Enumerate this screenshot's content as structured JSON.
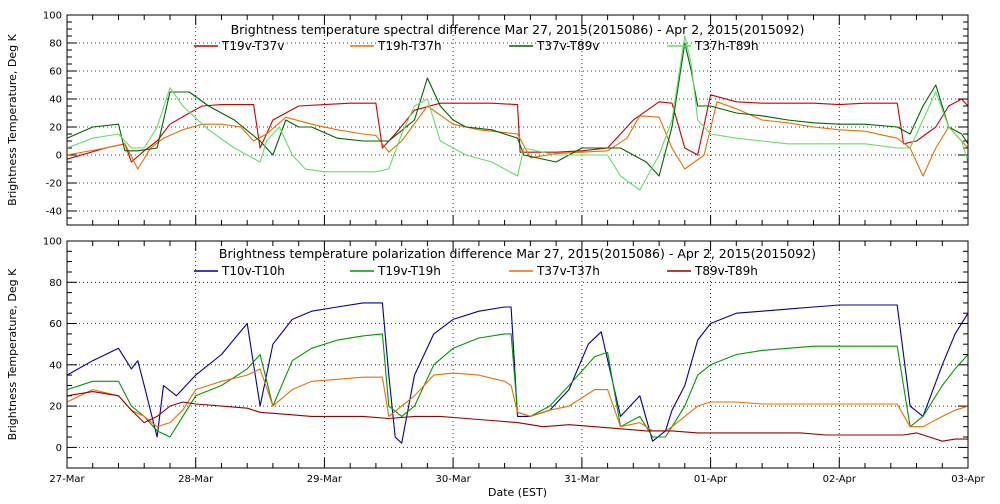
{
  "chart_data": [
    {
      "type": "line",
      "title": "Brightness temperature spectral difference    Mar 27, 2015(2015086) - Apr  2, 2015(2015092)",
      "ylabel": "Brightness Temperature, Deg K",
      "xlabel": "",
      "ylim": [
        -50,
        100
      ],
      "yticks": [
        -40,
        -20,
        0,
        20,
        40,
        60,
        80,
        100
      ],
      "xlim": [
        0,
        7
      ],
      "grid": true,
      "legend": "top",
      "series": [
        {
          "name": "T19v-T37v",
          "color": "#cc0000",
          "x": [
            0,
            0.3,
            0.45,
            0.5,
            0.6,
            0.7,
            0.8,
            0.95,
            1.05,
            1.2,
            1.3,
            1.45,
            1.5,
            1.6,
            1.8,
            2.0,
            2.2,
            2.4,
            2.45,
            2.55,
            2.7,
            2.9,
            3.1,
            3.3,
            3.5,
            3.52,
            3.6,
            3.8,
            4.0,
            4.2,
            4.4,
            4.6,
            4.7,
            4.8,
            4.9,
            5.0,
            5.2,
            5.4,
            5.6,
            5.8,
            6.0,
            6.2,
            6.45,
            6.5,
            6.6,
            6.75,
            6.85,
            6.95,
            7.0
          ],
          "values": [
            -3,
            5,
            8,
            -5,
            3,
            10,
            22,
            30,
            35,
            36,
            36,
            36,
            5,
            25,
            35,
            36,
            37,
            37,
            5,
            15,
            32,
            37,
            37,
            37,
            36,
            2,
            2,
            2,
            3,
            5,
            25,
            38,
            37,
            5,
            0,
            43,
            38,
            37,
            37,
            37,
            36,
            37,
            37,
            8,
            10,
            20,
            35,
            40,
            35
          ]
        },
        {
          "name": "T19h-T37h",
          "color": "#e87000",
          "x": [
            0,
            0.3,
            0.45,
            0.55,
            0.65,
            0.75,
            0.9,
            1.05,
            1.2,
            1.35,
            1.45,
            1.55,
            1.7,
            1.9,
            2.1,
            2.3,
            2.4,
            2.5,
            2.6,
            2.8,
            3.0,
            3.2,
            3.4,
            3.5,
            3.6,
            3.8,
            4.0,
            4.2,
            4.35,
            4.45,
            4.6,
            4.7,
            4.8,
            4.95,
            5.05,
            5.2,
            5.4,
            5.6,
            5.8,
            6.0,
            6.2,
            6.45,
            6.55,
            6.65,
            6.75,
            6.85,
            6.95,
            7.0
          ],
          "values": [
            0,
            5,
            8,
            -10,
            5,
            12,
            18,
            22,
            22,
            20,
            10,
            15,
            27,
            22,
            18,
            15,
            14,
            2,
            10,
            35,
            22,
            18,
            16,
            15,
            -2,
            1,
            2,
            3,
            12,
            28,
            27,
            5,
            -10,
            0,
            38,
            33,
            25,
            23,
            20,
            18,
            17,
            12,
            5,
            -15,
            5,
            20,
            10,
            5
          ]
        },
        {
          "name": "T37v-T89v",
          "color": "#006400",
          "x": [
            0,
            0.2,
            0.4,
            0.45,
            0.55,
            0.7,
            0.8,
            0.95,
            1.1,
            1.3,
            1.5,
            1.6,
            1.7,
            1.8,
            1.9,
            2.1,
            2.3,
            2.5,
            2.7,
            2.8,
            2.9,
            3.0,
            3.1,
            3.3,
            3.5,
            3.55,
            3.8,
            4.0,
            4.2,
            4.3,
            4.5,
            4.6,
            4.7,
            4.75,
            4.8,
            4.85,
            4.9,
            5.0,
            5.2,
            5.4,
            5.6,
            5.8,
            6.0,
            6.2,
            6.45,
            6.55,
            6.65,
            6.75,
            6.85,
            6.95,
            7.0
          ],
          "values": [
            12,
            20,
            22,
            3,
            3,
            5,
            45,
            45,
            35,
            25,
            10,
            0,
            25,
            20,
            20,
            12,
            10,
            10,
            25,
            55,
            35,
            25,
            20,
            18,
            12,
            0,
            -5,
            5,
            5,
            5,
            -5,
            -15,
            20,
            50,
            80,
            60,
            35,
            35,
            30,
            28,
            25,
            23,
            22,
            22,
            20,
            15,
            35,
            50,
            20,
            15,
            8
          ]
        },
        {
          "name": "T37h-T89h",
          "color": "#66dd66",
          "x": [
            0,
            0.2,
            0.4,
            0.5,
            0.6,
            0.7,
            0.8,
            0.9,
            1.1,
            1.3,
            1.5,
            1.55,
            1.65,
            1.75,
            1.85,
            2.0,
            2.2,
            2.4,
            2.5,
            2.6,
            2.7,
            2.8,
            2.9,
            3.1,
            3.3,
            3.5,
            3.55,
            3.8,
            4.0,
            4.2,
            4.3,
            4.45,
            4.6,
            4.7,
            4.75,
            4.8,
            4.85,
            4.9,
            5.0,
            5.2,
            5.4,
            5.6,
            5.8,
            6.0,
            6.2,
            6.45,
            6.55,
            6.65,
            6.75,
            6.85,
            6.95,
            7.0
          ],
          "values": [
            5,
            12,
            15,
            5,
            5,
            20,
            48,
            35,
            18,
            5,
            -5,
            10,
            20,
            0,
            -10,
            -12,
            -12,
            -12,
            -10,
            15,
            35,
            40,
            10,
            0,
            -5,
            -15,
            5,
            0,
            0,
            0,
            -15,
            -25,
            0,
            25,
            55,
            85,
            65,
            25,
            15,
            12,
            10,
            8,
            8,
            8,
            8,
            5,
            5,
            25,
            45,
            20,
            10,
            -5
          ]
        }
      ]
    },
    {
      "type": "line",
      "title": "Brightness temperature polarization difference    Mar 27, 2015(2015086) - Apr  2, 2015(2015092)",
      "ylabel": "Brightness Temperature, Deg K",
      "xlabel": "Date (EST)",
      "ylim": [
        -10,
        100
      ],
      "yticks": [
        0,
        20,
        40,
        60,
        80,
        100
      ],
      "xlim": [
        0,
        7
      ],
      "xticks": [
        "27-Mar",
        "28-Mar",
        "29-Mar",
        "30-Mar",
        "31-Mar",
        "01-Apr",
        "02-Apr",
        "03-Apr"
      ],
      "grid": true,
      "legend": "top",
      "series": [
        {
          "name": "T10v-T10h",
          "color": "#000099",
          "x": [
            0,
            0.2,
            0.4,
            0.5,
            0.55,
            0.6,
            0.7,
            0.75,
            0.85,
            1.0,
            1.2,
            1.4,
            1.5,
            1.6,
            1.75,
            1.9,
            2.1,
            2.3,
            2.45,
            2.5,
            2.55,
            2.6,
            2.7,
            2.85,
            3.0,
            3.2,
            3.4,
            3.45,
            3.5,
            3.6,
            3.75,
            3.9,
            4.05,
            4.15,
            4.3,
            4.45,
            4.55,
            4.65,
            4.7,
            4.8,
            4.9,
            5.0,
            5.2,
            5.4,
            5.6,
            5.8,
            6.0,
            6.2,
            6.45,
            6.55,
            6.65,
            6.8,
            6.9,
            7.0
          ],
          "values": [
            35,
            42,
            48,
            38,
            42,
            30,
            5,
            30,
            25,
            35,
            45,
            60,
            20,
            50,
            62,
            66,
            68,
            70,
            70,
            35,
            5,
            2,
            35,
            55,
            62,
            66,
            68,
            68,
            15,
            15,
            18,
            28,
            50,
            56,
            15,
            25,
            3,
            8,
            18,
            30,
            52,
            60,
            65,
            66,
            67,
            68,
            69,
            69,
            69,
            20,
            15,
            40,
            55,
            65
          ]
        },
        {
          "name": "T19v-T19h",
          "color": "#009900",
          "x": [
            0,
            0.2,
            0.4,
            0.5,
            0.6,
            0.7,
            0.8,
            0.9,
            1.0,
            1.2,
            1.4,
            1.5,
            1.6,
            1.75,
            1.9,
            2.1,
            2.3,
            2.45,
            2.5,
            2.6,
            2.7,
            2.85,
            3.0,
            3.2,
            3.4,
            3.45,
            3.5,
            3.6,
            3.75,
            3.9,
            4.1,
            4.2,
            4.3,
            4.45,
            4.55,
            4.65,
            4.7,
            4.8,
            4.9,
            5.0,
            5.2,
            5.4,
            5.6,
            5.8,
            6.0,
            6.2,
            6.45,
            6.55,
            6.65,
            6.8,
            6.9,
            7.0
          ],
          "values": [
            28,
            32,
            32,
            20,
            15,
            8,
            5,
            15,
            25,
            30,
            38,
            45,
            20,
            42,
            48,
            52,
            54,
            55,
            20,
            15,
            20,
            40,
            48,
            53,
            55,
            55,
            17,
            15,
            20,
            30,
            44,
            46,
            10,
            15,
            5,
            5,
            10,
            20,
            35,
            40,
            45,
            47,
            48,
            49,
            49,
            49,
            49,
            10,
            15,
            30,
            38,
            45
          ]
        },
        {
          "name": "T37v-T37h",
          "color": "#e87000",
          "x": [
            0,
            0.2,
            0.4,
            0.5,
            0.6,
            0.7,
            0.8,
            0.9,
            1.0,
            1.2,
            1.4,
            1.5,
            1.6,
            1.75,
            1.9,
            2.1,
            2.3,
            2.45,
            2.5,
            2.6,
            2.7,
            2.85,
            3.0,
            3.2,
            3.4,
            3.45,
            3.5,
            3.6,
            3.75,
            3.9,
            4.1,
            4.2,
            4.3,
            4.45,
            4.55,
            4.65,
            4.7,
            4.8,
            4.9,
            5.0,
            5.2,
            5.4,
            5.6,
            5.8,
            6.0,
            6.2,
            6.45,
            6.55,
            6.65,
            6.8,
            6.9,
            7.0
          ],
          "values": [
            22,
            28,
            25,
            18,
            15,
            10,
            12,
            18,
            28,
            32,
            35,
            38,
            20,
            28,
            32,
            33,
            34,
            34,
            15,
            20,
            25,
            35,
            36,
            35,
            32,
            30,
            17,
            15,
            18,
            20,
            28,
            28,
            10,
            12,
            8,
            8,
            10,
            15,
            20,
            22,
            22,
            21,
            21,
            21,
            21,
            21,
            21,
            10,
            10,
            15,
            18,
            20
          ]
        },
        {
          "name": "T89v-T89h",
          "color": "#990000",
          "x": [
            0,
            0.2,
            0.4,
            0.5,
            0.6,
            0.7,
            0.8,
            0.9,
            1.0,
            1.2,
            1.4,
            1.5,
            1.7,
            1.9,
            2.1,
            2.3,
            2.5,
            2.7,
            2.9,
            3.1,
            3.3,
            3.5,
            3.7,
            3.9,
            4.1,
            4.3,
            4.5,
            4.7,
            4.9,
            5.1,
            5.3,
            5.5,
            5.7,
            5.9,
            6.1,
            6.3,
            6.5,
            6.6,
            6.7,
            6.8,
            6.9,
            7.0
          ],
          "values": [
            25,
            27,
            25,
            18,
            12,
            15,
            20,
            22,
            21,
            20,
            19,
            17,
            16,
            15,
            15,
            15,
            14,
            15,
            15,
            14,
            13,
            12,
            10,
            11,
            10,
            9,
            8,
            8,
            7,
            7,
            7,
            7,
            7,
            6,
            6,
            6,
            6,
            7,
            5,
            3,
            4,
            4
          ]
        }
      ]
    }
  ]
}
